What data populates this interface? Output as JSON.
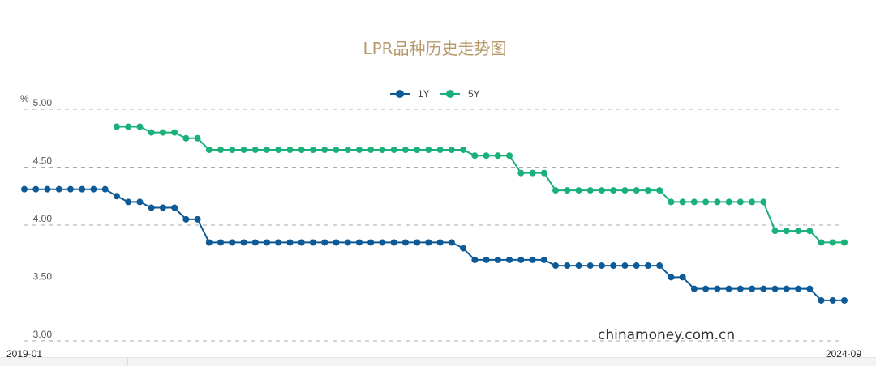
{
  "chart_data": {
    "type": "line",
    "title": "LPR品种历史走势图",
    "ylabel": "%",
    "ylim": [
      3.0,
      5.0
    ],
    "ytick_labels": [
      "5.00",
      "4.50",
      "4.00",
      "3.50",
      "3.00"
    ],
    "x_start_label": "2019-01",
    "x_end_label": "2024-09",
    "grid": true,
    "legend_position": "top-center",
    "series": [
      {
        "name": "1Y",
        "color": "#0d5a96",
        "values": [
          4.31,
          4.31,
          4.31,
          4.31,
          4.31,
          4.31,
          4.31,
          4.31,
          4.25,
          4.2,
          4.2,
          4.15,
          4.15,
          4.15,
          4.05,
          4.05,
          3.85,
          3.85,
          3.85,
          3.85,
          3.85,
          3.85,
          3.85,
          3.85,
          3.85,
          3.85,
          3.85,
          3.85,
          3.85,
          3.85,
          3.85,
          3.85,
          3.85,
          3.85,
          3.85,
          3.85,
          3.85,
          3.85,
          3.8,
          3.7,
          3.7,
          3.7,
          3.7,
          3.7,
          3.7,
          3.7,
          3.65,
          3.65,
          3.65,
          3.65,
          3.65,
          3.65,
          3.65,
          3.65,
          3.65,
          3.65,
          3.55,
          3.55,
          3.45,
          3.45,
          3.45,
          3.45,
          3.45,
          3.45,
          3.45,
          3.45,
          3.45,
          3.45,
          3.45,
          3.35,
          3.35,
          3.35
        ]
      },
      {
        "name": "5Y",
        "color": "#1ab07a",
        "values": [
          null,
          null,
          null,
          null,
          null,
          null,
          null,
          null,
          4.85,
          4.85,
          4.85,
          4.8,
          4.8,
          4.8,
          4.75,
          4.75,
          4.65,
          4.65,
          4.65,
          4.65,
          4.65,
          4.65,
          4.65,
          4.65,
          4.65,
          4.65,
          4.65,
          4.65,
          4.65,
          4.65,
          4.65,
          4.65,
          4.65,
          4.65,
          4.65,
          4.65,
          4.65,
          4.65,
          4.65,
          4.6,
          4.6,
          4.6,
          4.6,
          4.45,
          4.45,
          4.45,
          4.3,
          4.3,
          4.3,
          4.3,
          4.3,
          4.3,
          4.3,
          4.3,
          4.3,
          4.3,
          4.2,
          4.2,
          4.2,
          4.2,
          4.2,
          4.2,
          4.2,
          4.2,
          4.2,
          3.95,
          3.95,
          3.95,
          3.95,
          3.85,
          3.85,
          3.85
        ]
      }
    ]
  },
  "colors": {
    "title": "#b79a6c",
    "grid": "#aaaaaa"
  },
  "watermark": "chinamoney.com.cn"
}
